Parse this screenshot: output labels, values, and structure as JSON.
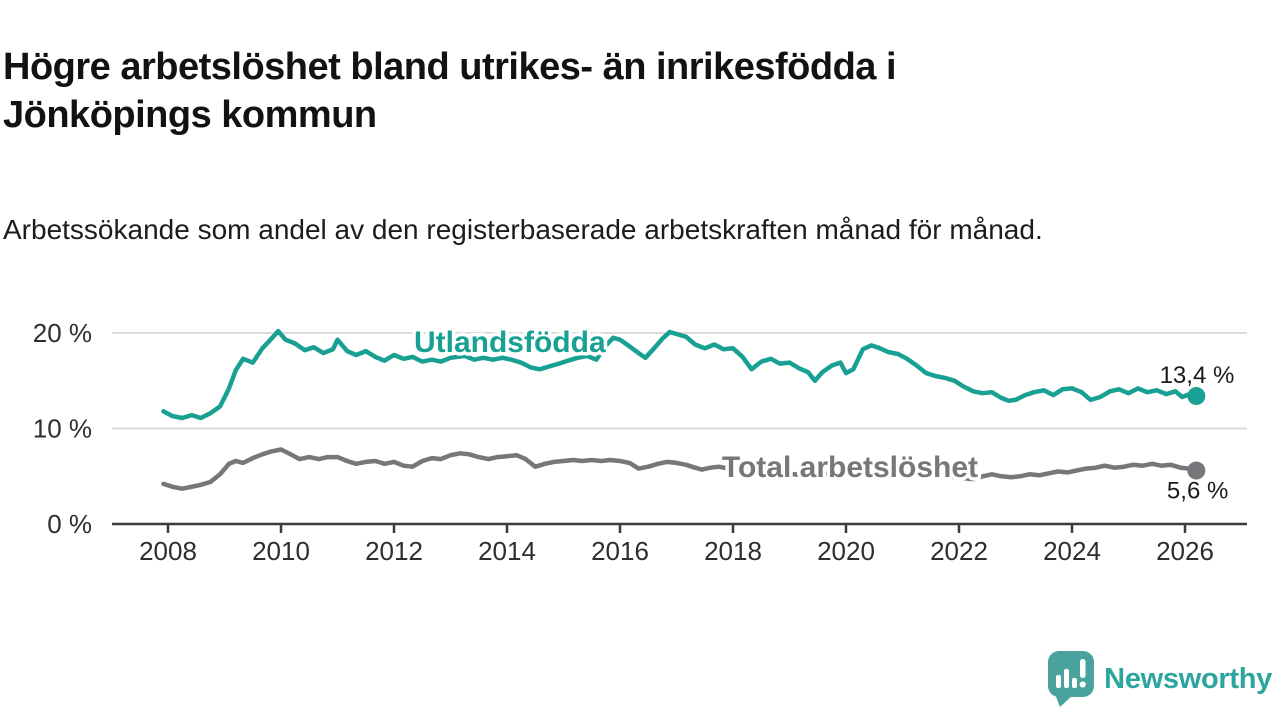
{
  "header": {
    "title": "Högre arbetslöshet bland utrikes- än inrikesfödda i Jönköpings kommun",
    "subtitle": "Arbetssökande som andel av den registerbaserade arbetskraften månad för månad."
  },
  "footer": {
    "brand": "Newsworthy",
    "logo_icon": "speech-bubble-bar-chart-icon",
    "logo_icon_color": "#49a29c",
    "logo_text_color": "#2ba59d"
  },
  "chart_data": {
    "type": "line",
    "title": "Högre arbetslöshet bland utrikes- än inrikesfödda i Jönköpings kommun",
    "unit": "%",
    "grid": true,
    "x_axis": {
      "ticks": [
        2008,
        2010,
        2012,
        2014,
        2016,
        2018,
        2020,
        2022,
        2024,
        2026
      ],
      "range": [
        2007.9,
        2027.1
      ]
    },
    "y_axis": {
      "ticks": [
        {
          "label": "0 %",
          "value": 0,
          "grid": false
        },
        {
          "label": "10 %",
          "value": 10,
          "grid": true
        },
        {
          "label": "20 %",
          "value": 20,
          "grid": true
        }
      ],
      "range": [
        0,
        21.5
      ]
    },
    "colors": {
      "gridline": "#dcdcdc",
      "axis": "#3c3c3c",
      "tick_text": "#2e2e2e",
      "value_label_text": "#1a1a1a"
    },
    "series": [
      {
        "name": "Utlandsfödda",
        "color": "#18a192",
        "end_value": 13.4,
        "end_label": "13,4 %",
        "label_at": [
          2014.05,
          18.0
        ],
        "points": [
          [
            2007.92,
            11.8
          ],
          [
            2008.08,
            11.3
          ],
          [
            2008.25,
            11.1
          ],
          [
            2008.42,
            11.4
          ],
          [
            2008.58,
            11.1
          ],
          [
            2008.75,
            11.6
          ],
          [
            2008.92,
            12.3
          ],
          [
            2009.08,
            14.2
          ],
          [
            2009.2,
            16.1
          ],
          [
            2009.33,
            17.3
          ],
          [
            2009.5,
            16.9
          ],
          [
            2009.67,
            18.4
          ],
          [
            2009.83,
            19.4
          ],
          [
            2009.95,
            20.2
          ],
          [
            2010.08,
            19.3
          ],
          [
            2010.25,
            18.9
          ],
          [
            2010.42,
            18.2
          ],
          [
            2010.58,
            18.5
          ],
          [
            2010.75,
            17.9
          ],
          [
            2010.92,
            18.3
          ],
          [
            2011.0,
            19.3
          ],
          [
            2011.17,
            18.1
          ],
          [
            2011.33,
            17.7
          ],
          [
            2011.5,
            18.1
          ],
          [
            2011.67,
            17.5
          ],
          [
            2011.83,
            17.1
          ],
          [
            2012.0,
            17.7
          ],
          [
            2012.17,
            17.3
          ],
          [
            2012.33,
            17.5
          ],
          [
            2012.5,
            17.0
          ],
          [
            2012.67,
            17.2
          ],
          [
            2012.83,
            17.0
          ],
          [
            2013.0,
            17.4
          ],
          [
            2013.25,
            17.6
          ],
          [
            2013.42,
            17.2
          ],
          [
            2013.58,
            17.4
          ],
          [
            2013.75,
            17.2
          ],
          [
            2013.92,
            17.4
          ],
          [
            2014.08,
            17.2
          ],
          [
            2014.25,
            16.9
          ],
          [
            2014.42,
            16.4
          ],
          [
            2014.58,
            16.2
          ],
          [
            2014.75,
            16.5
          ],
          [
            2014.92,
            16.8
          ],
          [
            2015.08,
            17.1
          ],
          [
            2015.25,
            17.4
          ],
          [
            2015.42,
            17.6
          ],
          [
            2015.58,
            17.2
          ],
          [
            2015.75,
            18.7
          ],
          [
            2015.88,
            19.5
          ],
          [
            2016.0,
            19.3
          ],
          [
            2016.17,
            18.6
          ],
          [
            2016.33,
            17.9
          ],
          [
            2016.45,
            17.4
          ],
          [
            2016.62,
            18.5
          ],
          [
            2016.75,
            19.4
          ],
          [
            2016.88,
            20.1
          ],
          [
            2017.0,
            19.9
          ],
          [
            2017.17,
            19.6
          ],
          [
            2017.33,
            18.8
          ],
          [
            2017.5,
            18.4
          ],
          [
            2017.67,
            18.8
          ],
          [
            2017.83,
            18.3
          ],
          [
            2018.0,
            18.4
          ],
          [
            2018.17,
            17.5
          ],
          [
            2018.33,
            16.2
          ],
          [
            2018.5,
            17.0
          ],
          [
            2018.67,
            17.3
          ],
          [
            2018.83,
            16.8
          ],
          [
            2019.0,
            16.9
          ],
          [
            2019.17,
            16.3
          ],
          [
            2019.33,
            15.9
          ],
          [
            2019.45,
            15.0
          ],
          [
            2019.58,
            15.9
          ],
          [
            2019.75,
            16.6
          ],
          [
            2019.9,
            16.9
          ],
          [
            2020.0,
            15.8
          ],
          [
            2020.13,
            16.2
          ],
          [
            2020.3,
            18.3
          ],
          [
            2020.45,
            18.7
          ],
          [
            2020.6,
            18.4
          ],
          [
            2020.75,
            18.0
          ],
          [
            2020.92,
            17.8
          ],
          [
            2021.08,
            17.3
          ],
          [
            2021.25,
            16.6
          ],
          [
            2021.42,
            15.8
          ],
          [
            2021.58,
            15.5
          ],
          [
            2021.75,
            15.3
          ],
          [
            2021.92,
            15.0
          ],
          [
            2022.08,
            14.4
          ],
          [
            2022.25,
            13.9
          ],
          [
            2022.42,
            13.7
          ],
          [
            2022.58,
            13.8
          ],
          [
            2022.75,
            13.2
          ],
          [
            2022.88,
            12.9
          ],
          [
            2023.0,
            13.0
          ],
          [
            2023.17,
            13.5
          ],
          [
            2023.33,
            13.8
          ],
          [
            2023.5,
            14.0
          ],
          [
            2023.67,
            13.5
          ],
          [
            2023.83,
            14.1
          ],
          [
            2024.0,
            14.2
          ],
          [
            2024.17,
            13.8
          ],
          [
            2024.33,
            13.0
          ],
          [
            2024.5,
            13.3
          ],
          [
            2024.67,
            13.9
          ],
          [
            2024.83,
            14.1
          ],
          [
            2025.0,
            13.7
          ],
          [
            2025.17,
            14.2
          ],
          [
            2025.33,
            13.8
          ],
          [
            2025.5,
            14.0
          ],
          [
            2025.67,
            13.6
          ],
          [
            2025.83,
            13.9
          ],
          [
            2025.95,
            13.3
          ],
          [
            2026.08,
            13.6
          ],
          [
            2026.2,
            13.4
          ]
        ]
      },
      {
        "name": "Total arbetslöshet",
        "color": "#76767b",
        "end_value": 5.6,
        "end_label": "5,6 %",
        "label_at": [
          2020.07,
          4.92
        ],
        "points": [
          [
            2007.92,
            4.2
          ],
          [
            2008.08,
            3.9
          ],
          [
            2008.25,
            3.7
          ],
          [
            2008.42,
            3.9
          ],
          [
            2008.58,
            4.1
          ],
          [
            2008.75,
            4.4
          ],
          [
            2008.92,
            5.2
          ],
          [
            2009.08,
            6.3
          ],
          [
            2009.2,
            6.6
          ],
          [
            2009.33,
            6.4
          ],
          [
            2009.5,
            6.9
          ],
          [
            2009.67,
            7.3
          ],
          [
            2009.83,
            7.6
          ],
          [
            2010.0,
            7.8
          ],
          [
            2010.17,
            7.3
          ],
          [
            2010.33,
            6.8
          ],
          [
            2010.5,
            7.0
          ],
          [
            2010.67,
            6.8
          ],
          [
            2010.83,
            7.0
          ],
          [
            2011.0,
            7.0
          ],
          [
            2011.17,
            6.6
          ],
          [
            2011.33,
            6.3
          ],
          [
            2011.5,
            6.5
          ],
          [
            2011.67,
            6.6
          ],
          [
            2011.83,
            6.3
          ],
          [
            2012.0,
            6.5
          ],
          [
            2012.17,
            6.1
          ],
          [
            2012.33,
            6.0
          ],
          [
            2012.5,
            6.6
          ],
          [
            2012.67,
            6.9
          ],
          [
            2012.83,
            6.8
          ],
          [
            2013.0,
            7.2
          ],
          [
            2013.17,
            7.4
          ],
          [
            2013.33,
            7.3
          ],
          [
            2013.5,
            7.0
          ],
          [
            2013.67,
            6.8
          ],
          [
            2013.83,
            7.0
          ],
          [
            2014.0,
            7.1
          ],
          [
            2014.17,
            7.2
          ],
          [
            2014.33,
            6.8
          ],
          [
            2014.5,
            6.0
          ],
          [
            2014.67,
            6.3
          ],
          [
            2014.83,
            6.5
          ],
          [
            2015.0,
            6.6
          ],
          [
            2015.17,
            6.7
          ],
          [
            2015.33,
            6.6
          ],
          [
            2015.5,
            6.7
          ],
          [
            2015.67,
            6.6
          ],
          [
            2015.83,
            6.7
          ],
          [
            2016.0,
            6.6
          ],
          [
            2016.17,
            6.4
          ],
          [
            2016.33,
            5.8
          ],
          [
            2016.5,
            6.0
          ],
          [
            2016.67,
            6.3
          ],
          [
            2016.83,
            6.5
          ],
          [
            2017.0,
            6.4
          ],
          [
            2017.17,
            6.2
          ],
          [
            2017.33,
            5.9
          ],
          [
            2017.45,
            5.7
          ],
          [
            2017.6,
            5.9
          ],
          [
            2017.75,
            6.0
          ],
          [
            2017.92,
            5.8
          ],
          [
            2018.08,
            5.6
          ],
          [
            2018.25,
            5.5
          ],
          [
            2018.42,
            5.6
          ],
          [
            2018.58,
            5.5
          ],
          [
            2018.75,
            5.4
          ],
          [
            2018.92,
            5.3
          ],
          [
            2019.08,
            5.2
          ],
          [
            2019.25,
            5.1
          ],
          [
            2019.42,
            5.0
          ],
          [
            2019.58,
            5.2
          ],
          [
            2019.75,
            5.3
          ],
          [
            2019.92,
            5.2
          ],
          [
            2020.08,
            5.5
          ],
          [
            2020.25,
            5.8
          ],
          [
            2020.42,
            6.0
          ],
          [
            2020.58,
            5.9
          ],
          [
            2020.75,
            5.7
          ],
          [
            2020.92,
            5.5
          ],
          [
            2021.08,
            5.3
          ],
          [
            2021.25,
            5.1
          ],
          [
            2021.42,
            4.9
          ],
          [
            2021.58,
            5.0
          ],
          [
            2021.75,
            5.2
          ],
          [
            2021.92,
            4.9
          ],
          [
            2022.08,
            4.8
          ],
          [
            2022.25,
            4.7
          ],
          [
            2022.42,
            5.0
          ],
          [
            2022.58,
            5.2
          ],
          [
            2022.75,
            5.0
          ],
          [
            2022.92,
            4.9
          ],
          [
            2023.08,
            5.0
          ],
          [
            2023.25,
            5.2
          ],
          [
            2023.42,
            5.1
          ],
          [
            2023.58,
            5.3
          ],
          [
            2023.75,
            5.5
          ],
          [
            2023.92,
            5.4
          ],
          [
            2024.08,
            5.6
          ],
          [
            2024.25,
            5.8
          ],
          [
            2024.42,
            5.9
          ],
          [
            2024.58,
            6.1
          ],
          [
            2024.75,
            5.9
          ],
          [
            2024.92,
            6.0
          ],
          [
            2025.08,
            6.2
          ],
          [
            2025.25,
            6.1
          ],
          [
            2025.42,
            6.3
          ],
          [
            2025.58,
            6.1
          ],
          [
            2025.75,
            6.2
          ],
          [
            2025.92,
            5.9
          ],
          [
            2026.08,
            5.8
          ],
          [
            2026.2,
            5.6
          ]
        ]
      }
    ]
  }
}
